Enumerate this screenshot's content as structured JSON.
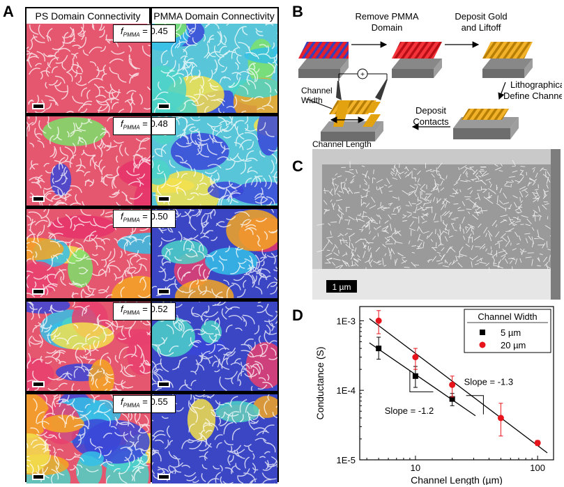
{
  "panel_labels": {
    "a": "A",
    "b": "B",
    "c": "C",
    "d": "D"
  },
  "panel_a": {
    "headers": [
      "PS Domain Connectivity",
      "PMMA Domain Connectivity"
    ],
    "f_symbol": "f",
    "f_subscript": "PMMA",
    "rows": [
      {
        "f_value": "= 0.45"
      },
      {
        "f_value": "= 0.48"
      },
      {
        "f_value": "= 0.50"
      },
      {
        "f_value": "= 0.52"
      },
      {
        "f_value": "= 0.55"
      }
    ]
  },
  "panel_b": {
    "steps": [
      [
        "Remove PMMA",
        "Domain"
      ],
      [
        "Deposit Gold",
        "and Liftoff"
      ],
      [
        "Lithographically",
        "Define Channels"
      ],
      [
        "Deposit",
        "Contacts"
      ]
    ],
    "labels": {
      "channel_width": [
        "Channel",
        "Width"
      ],
      "channel_length": "Channel Length"
    }
  },
  "panel_c": {
    "scale_bar": "1 µm"
  },
  "chart_data": {
    "type": "scatter",
    "xlabel": "Channel Length (µm)",
    "ylabel": "Conductance (S)",
    "x_log": true,
    "y_log": true,
    "xlim": [
      3.5,
      135
    ],
    "ylim": [
      1e-05,
      0.0016
    ],
    "x_ticks": [
      10,
      100
    ],
    "x_tick_labels": [
      "10",
      "100"
    ],
    "y_ticks": [
      1e-05,
      0.0001,
      0.001
    ],
    "y_tick_labels": [
      "1E-5",
      "1E-4",
      "1E-3"
    ],
    "legend_title": "Channel Width",
    "legend_position": "top-right",
    "series": [
      {
        "name": "5 µm",
        "marker": "square",
        "color": "#000000",
        "x": [
          5,
          10,
          20
        ],
        "y": [
          0.0004,
          0.00016,
          7.5e-05
        ],
        "err_lo": [
          0.00028,
          0.00011,
          6e-05
        ],
        "err_hi": [
          0.00058,
          0.00022,
          9e-05
        ]
      },
      {
        "name": "20 µm",
        "marker": "circle",
        "color": "#e8141c",
        "x": [
          5,
          10,
          20,
          50,
          100
        ],
        "y": [
          0.001,
          0.0003,
          0.00012,
          4e-05,
          1.75e-05
        ],
        "err_lo": [
          0.00065,
          0.0002,
          8e-05,
          2.2e-05,
          1.6e-05
        ],
        "err_hi": [
          0.0014,
          0.0004,
          0.00016,
          6.5e-05,
          1.9e-05
        ]
      }
    ],
    "annotations": [
      {
        "text": "Slope = -1.2"
      },
      {
        "text": "Slope = -1.3"
      }
    ]
  }
}
